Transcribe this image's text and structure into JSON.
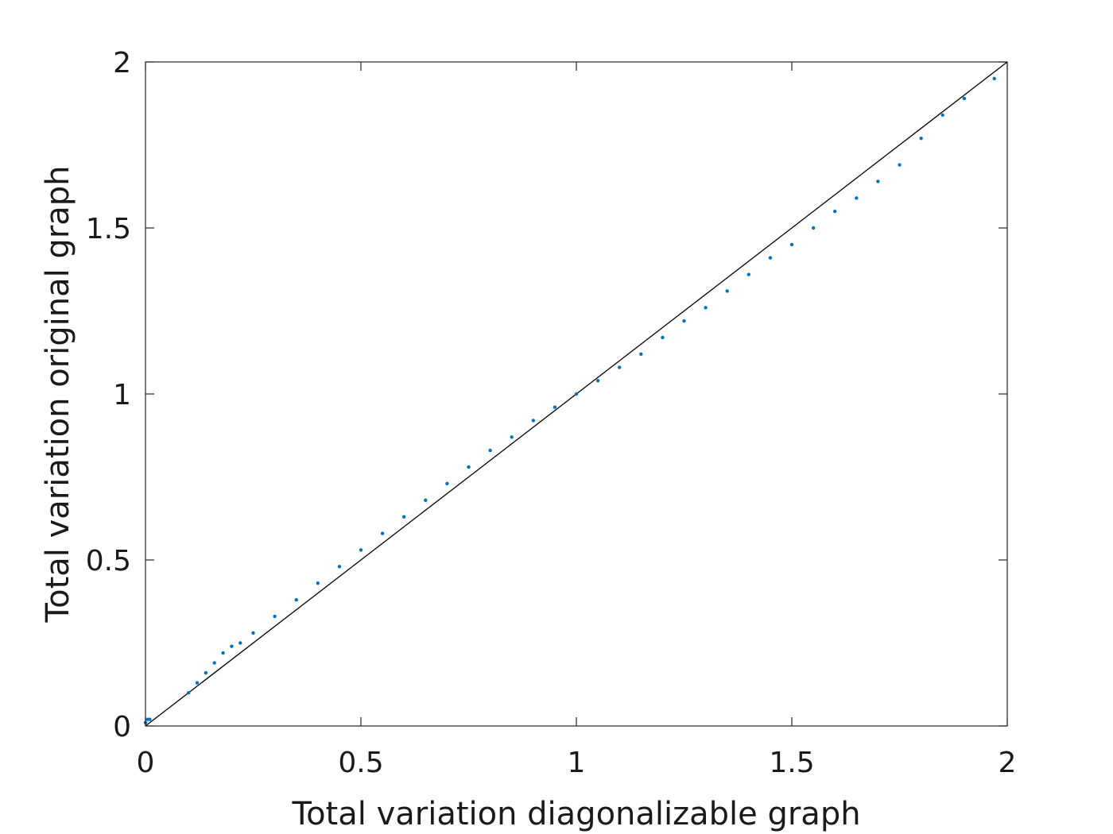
{
  "chart_data": {
    "type": "scatter",
    "xlabel": "Total variation diagonalizable graph",
    "ylabel": "Total variation original graph",
    "xlim": [
      0,
      2
    ],
    "ylim": [
      0,
      2
    ],
    "xticks": [
      "0",
      "0.5",
      "1",
      "1.5",
      "2"
    ],
    "yticks": [
      "0",
      "0.5",
      "1",
      "1.5",
      "2"
    ],
    "grid": false,
    "box": true,
    "reference_line": {
      "from": [
        0,
        0
      ],
      "to": [
        2,
        2
      ]
    },
    "colors": {
      "points": "#0072BD",
      "reference_line": "#000000",
      "axes": "#262626"
    },
    "series": [
      {
        "x": [
          0.0,
          0.005,
          0.01,
          0.1,
          0.12,
          0.14,
          0.16,
          0.18,
          0.2,
          0.22,
          0.25,
          0.3,
          0.35,
          0.4,
          0.45,
          0.5,
          0.55,
          0.6,
          0.65,
          0.7,
          0.75,
          0.8,
          0.85,
          0.9,
          0.95,
          1.0,
          1.05,
          1.1,
          1.15,
          1.2,
          1.25,
          1.3,
          1.35,
          1.4,
          1.45,
          1.5,
          1.55,
          1.6,
          1.65,
          1.7,
          1.75,
          1.8,
          1.85,
          1.9,
          1.97
        ],
        "y": [
          0.01,
          0.02,
          0.02,
          0.1,
          0.13,
          0.16,
          0.19,
          0.22,
          0.24,
          0.25,
          0.28,
          0.33,
          0.38,
          0.43,
          0.48,
          0.53,
          0.58,
          0.63,
          0.68,
          0.73,
          0.78,
          0.83,
          0.87,
          0.92,
          0.96,
          1.0,
          1.04,
          1.08,
          1.12,
          1.17,
          1.22,
          1.26,
          1.31,
          1.36,
          1.41,
          1.45,
          1.5,
          1.55,
          1.59,
          1.64,
          1.69,
          1.77,
          1.84,
          1.89,
          1.95
        ]
      }
    ]
  }
}
